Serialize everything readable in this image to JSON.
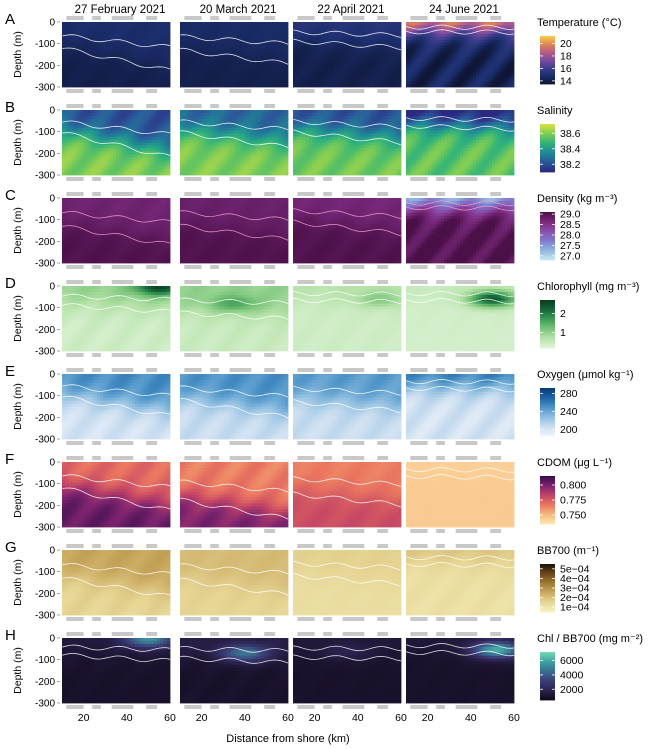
{
  "chart_data": {
    "type": "heatmap",
    "xlabel": "Distance from shore (km)",
    "ylabel": "Depth (m)",
    "x_ticks": [
      20,
      40,
      60
    ],
    "x_range": [
      10,
      60
    ],
    "y_ticks": [
      0,
      -100,
      -200,
      -300
    ],
    "y_range": [
      -300,
      0
    ],
    "dates": [
      "27 February 2021",
      "20 March 2021",
      "22 April 2021",
      "24 June 2021"
    ],
    "rows": [
      {
        "letter": "A",
        "title": "Temperature (°C)",
        "legend_ticks": [
          "20",
          "18",
          "16",
          "14"
        ],
        "legend_range": [
          13.5,
          21.2
        ],
        "legend_values": [
          20,
          18,
          16,
          14
        ],
        "colors": [
          "#0f1637",
          "#1c2f6e",
          "#403e8f",
          "#7b4ea0",
          "#b65d86",
          "#df8453",
          "#f8c74a"
        ],
        "fields": [
          {
            "surface": 14.7,
            "deep": 14.0,
            "thermocline": 150,
            "slope": 0.6
          },
          {
            "surface": 14.6,
            "deep": 14.0,
            "thermocline": 140,
            "slope": 0.4
          },
          {
            "surface": 15.2,
            "deep": 14.0,
            "thermocline": 90,
            "slope": 0.3
          },
          {
            "surface": 20.5,
            "deep": 14.2,
            "thermocline": 40,
            "slope": 0.05
          }
        ]
      },
      {
        "letter": "B",
        "title": "Salinity",
        "legend_ticks": [
          "38.6",
          "38.4",
          "38.2"
        ],
        "legend_range": [
          38.1,
          38.72
        ],
        "legend_values": [
          38.6,
          38.4,
          38.2
        ],
        "colors": [
          "#2a2a82",
          "#2b5a9a",
          "#1f8a97",
          "#2fb27a",
          "#7ccc55",
          "#d6e045"
        ],
        "fields": [
          {
            "surface": 38.2,
            "deep": 38.6,
            "thermocline": 140,
            "slope": 0.7
          },
          {
            "surface": 38.25,
            "deep": 38.6,
            "thermocline": 120,
            "slope": 0.5
          },
          {
            "surface": 38.2,
            "deep": 38.58,
            "thermocline": 110,
            "slope": 0.4
          },
          {
            "surface": 38.05,
            "deep": 38.55,
            "thermocline": 70,
            "slope": 0.2
          }
        ]
      },
      {
        "letter": "C",
        "title": "Density (kg m⁻³)",
        "legend_ticks": [
          "29.0",
          "28.5",
          "28.0",
          "27.5",
          "27.0"
        ],
        "legend_range": [
          26.8,
          29.1
        ],
        "legend_values": [
          29.0,
          28.5,
          28.0,
          27.5,
          27.0
        ],
        "colors": [
          "#c6e4f2",
          "#8fb4e0",
          "#7f7bcc",
          "#8a50ab",
          "#7a2a7d",
          "#4b1048"
        ],
        "fields": [
          {
            "surface": 28.75,
            "deep": 29.05,
            "thermocline": 150,
            "slope": 0.5
          },
          {
            "surface": 28.8,
            "deep": 29.05,
            "thermocline": 140,
            "slope": 0.4
          },
          {
            "surface": 28.7,
            "deep": 29.05,
            "thermocline": 120,
            "slope": 0.4
          },
          {
            "surface": 27.0,
            "deep": 29.05,
            "thermocline": 40,
            "slope": 0.1
          }
        ]
      },
      {
        "letter": "D",
        "title": "Chlorophyll (mg m⁻³)",
        "legend_ticks": [
          "2",
          "1"
        ],
        "legend_range": [
          0.2,
          2.7
        ],
        "legend_values": [
          2,
          1
        ],
        "colors": [
          "#dff3d9",
          "#b5e2a8",
          "#79c479",
          "#3f9c56",
          "#16693a",
          "#0a3d21"
        ],
        "fields": [
          {
            "surface": 1.0,
            "deep": 0.4,
            "thermocline": 90,
            "slope": 0.3,
            "patch": [
              55,
              5,
              2.6
            ]
          },
          {
            "surface": 1.0,
            "deep": 0.45,
            "thermocline": 120,
            "slope": 0.2,
            "patch": [
              35,
              80,
              1.6
            ]
          },
          {
            "surface": 0.7,
            "deep": 0.4,
            "thermocline": 60,
            "slope": 0.1,
            "patch": [
              50,
              60,
              1.1
            ]
          },
          {
            "surface": 0.5,
            "deep": 0.35,
            "thermocline": 60,
            "slope": 0.1,
            "patch": [
              50,
              60,
              2.4
            ]
          }
        ]
      },
      {
        "letter": "E",
        "title": "Oxygen (μmol kg⁻¹)",
        "legend_ticks": [
          "280",
          "240",
          "200"
        ],
        "legend_range": [
          185,
          292
        ],
        "legend_values": [
          280,
          240,
          200
        ],
        "colors": [
          "#eef3fb",
          "#c8dcef",
          "#8dbde0",
          "#4c93c8",
          "#1f64a6",
          "#0b3d7c"
        ],
        "fields": [
          {
            "surface": 252,
            "deep": 200,
            "thermocline": 130,
            "slope": 0.6
          },
          {
            "surface": 250,
            "deep": 205,
            "thermocline": 140,
            "slope": 0.5
          },
          {
            "surface": 245,
            "deep": 205,
            "thermocline": 130,
            "slope": 0.3
          },
          {
            "surface": 262,
            "deep": 200,
            "thermocline": 60,
            "slope": 0.1
          }
        ]
      },
      {
        "letter": "F",
        "title": "CDOM (μg L⁻¹)",
        "legend_ticks": [
          "0.800",
          "0.775",
          "0.750"
        ],
        "legend_range": [
          0.735,
          0.815
        ],
        "legend_values": [
          0.8,
          0.775,
          0.75
        ],
        "colors": [
          "#fce6b0",
          "#f7b57a",
          "#ea7660",
          "#c24465",
          "#7f2470",
          "#3a0e4d"
        ],
        "fields": [
          {
            "surface": 0.77,
            "deep": 0.805,
            "thermocline": 150,
            "slope": 0.6
          },
          {
            "surface": 0.765,
            "deep": 0.8,
            "thermocline": 190,
            "slope": 0.4
          },
          {
            "surface": 0.765,
            "deep": 0.78,
            "thermocline": 150,
            "slope": 0.3
          },
          {
            "surface": 0.742,
            "deep": 0.744,
            "thermocline": 60,
            "slope": 0.1
          }
        ]
      },
      {
        "letter": "G",
        "title": "BB700 (m⁻¹)",
        "legend_ticks": [
          "5e−04",
          "4e−04",
          "3e−04",
          "2e−04",
          "1e−04"
        ],
        "legend_range": [
          5e-05,
          0.00055
        ],
        "legend_values": [
          0.0005,
          0.0004,
          0.0003,
          0.0002,
          0.0001
        ],
        "colors": [
          "#f5f0be",
          "#e6d594",
          "#c9aa60",
          "#a27a36",
          "#6e4a1a",
          "#1e1408"
        ],
        "fields": [
          {
            "surface": 0.00026,
            "deep": 0.00015,
            "thermocline": 150,
            "slope": 0.5
          },
          {
            "surface": 0.00021,
            "deep": 0.00015,
            "thermocline": 150,
            "slope": 0.4
          },
          {
            "surface": 0.00016,
            "deep": 0.00012,
            "thermocline": 120,
            "slope": 0.3
          },
          {
            "surface": 0.00019,
            "deep": 0.00011,
            "thermocline": 60,
            "slope": 0.1
          }
        ]
      },
      {
        "letter": "H",
        "title": "Chl / BB700 (mg m⁻²)",
        "legend_ticks": [
          "6000",
          "4000",
          "2000"
        ],
        "legend_range": [
          500,
          7200
        ],
        "legend_values": [
          6000,
          4000,
          2000
        ],
        "colors": [
          "#120a1c",
          "#2c2350",
          "#3b3f78",
          "#3a6e90",
          "#3e9fa0",
          "#74d6b4"
        ],
        "fields": [
          {
            "surface": 1400,
            "deep": 900,
            "thermocline": 80,
            "slope": 0.3,
            "patch": [
              50,
              5,
              5500
            ]
          },
          {
            "surface": 1600,
            "deep": 900,
            "thermocline": 90,
            "slope": 0.2,
            "patch": [
              40,
              70,
              4800
            ]
          },
          {
            "surface": 1300,
            "deep": 900,
            "thermocline": 80,
            "slope": 0.1,
            "patch": [
              35,
              60,
              1900
            ]
          },
          {
            "surface": 1300,
            "deep": 900,
            "thermocline": 60,
            "slope": 0.1,
            "patch": [
              52,
              55,
              6300
            ]
          }
        ]
      }
    ]
  }
}
